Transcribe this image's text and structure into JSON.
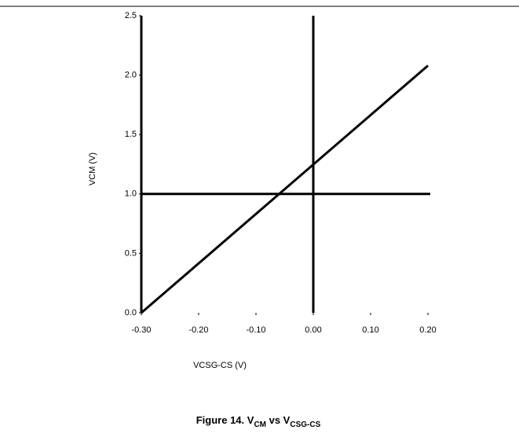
{
  "chart_data": {
    "type": "line",
    "caption": {
      "prefix": "Figure 14. V",
      "sub1": "CM",
      "mid": " vs V",
      "sub2": "CSG-CS"
    },
    "x_label": "VCSG-CS (V)",
    "y_label": "VCM (V)",
    "x": [
      -0.3,
      0.2
    ],
    "series": [
      {
        "name": "VCM",
        "color": "#000000",
        "values": [
          0,
          2.08
        ]
      }
    ],
    "xlim": [
      -0.3,
      0.2
    ],
    "xticks": [
      {
        "value": -0.3,
        "label": "-0.30"
      },
      {
        "value": -0.2,
        "label": "-0.20"
      },
      {
        "value": -0.1,
        "label": "-0.10"
      },
      {
        "value": 0,
        "label": "0.00"
      },
      {
        "value": 0.1,
        "label": "0.10"
      },
      {
        "value": 0.2,
        "label": "0.20"
      }
    ],
    "ylim": [
      0,
      2.5
    ],
    "yticks": [
      {
        "value": 0,
        "label": "0.0"
      },
      0.5,
      {
        "value": 1,
        "label": "1.0"
      },
      1.5,
      {
        "value": 2,
        "label": "2.0"
      },
      2.5
    ],
    "x_reference": 0,
    "y_reference": 1
  }
}
